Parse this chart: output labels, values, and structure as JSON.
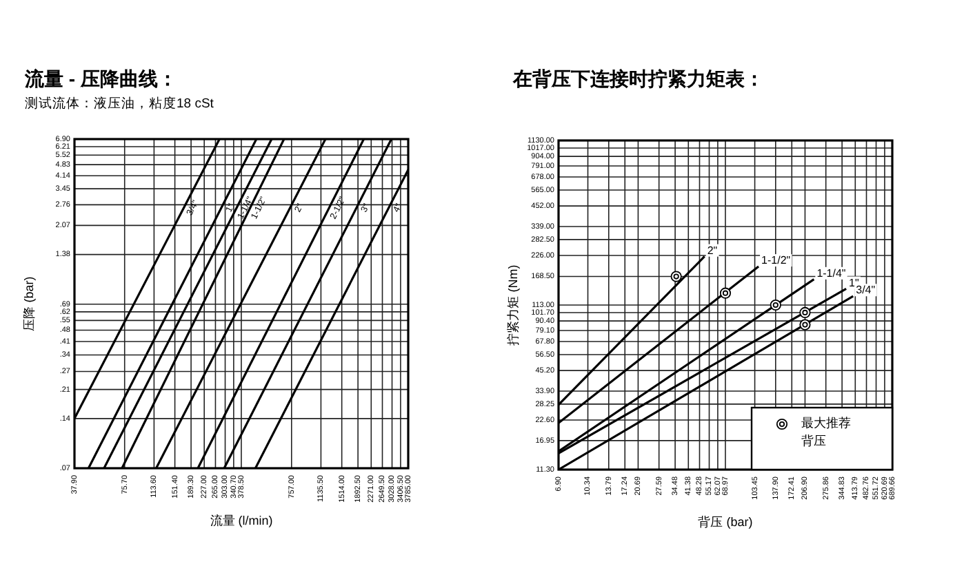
{
  "chart_data": [
    {
      "type": "line",
      "title": "流量 - 压降曲线：",
      "subtitle": "测试流体：液压油，粘度18 cSt",
      "xlabel": "流量 (l/min)",
      "ylabel": "压降 (bar)",
      "log": "xy",
      "xlim": [
        37.9,
        3785
      ],
      "ylim": [
        0.07,
        6.9
      ],
      "grid": true,
      "legend": false,
      "xticks": [
        {
          "value": 37.9,
          "label": "37.90"
        },
        {
          "value": 75.7,
          "label": "75.70"
        },
        {
          "value": 113.6,
          "label": "113.60"
        },
        {
          "value": 151.4,
          "label": "151.40"
        },
        {
          "value": 189.3,
          "label": "189.30"
        },
        {
          "value": 227,
          "label": "227.00"
        },
        {
          "value": 265,
          "label": "265.00"
        },
        {
          "value": 303,
          "label": "303.00"
        },
        {
          "value": 340.7,
          "label": "340.70"
        },
        {
          "value": 378.5,
          "label": "378.50"
        },
        {
          "value": 757,
          "label": "757.00"
        },
        {
          "value": 1135.5,
          "label": "1135.50"
        },
        {
          "value": 1514,
          "label": "1514.00"
        },
        {
          "value": 1892.5,
          "label": "1892.50"
        },
        {
          "value": 2271,
          "label": "2271.00"
        },
        {
          "value": 2649.5,
          "label": "2649.50"
        },
        {
          "value": 3028,
          "label": "3028.00"
        },
        {
          "value": 3406.5,
          "label": "3406.50"
        },
        {
          "value": 3785,
          "label": "3785.00"
        }
      ],
      "yticks": [
        {
          "value": 6.9,
          "label": "6.90"
        },
        {
          "value": 6.21,
          "label": "6.21"
        },
        {
          "value": 5.52,
          "label": "5.52"
        },
        {
          "value": 4.83,
          "label": "4.83"
        },
        {
          "value": 4.14,
          "label": "4.14"
        },
        {
          "value": 3.45,
          "label": "3.45"
        },
        {
          "value": 2.76,
          "label": "2.76"
        },
        {
          "value": 2.07,
          "label": "2.07"
        },
        {
          "value": 1.38,
          "label": "1.38"
        },
        {
          "value": 0.69,
          "label": ".69"
        },
        {
          "value": 0.62,
          "label": ".62"
        },
        {
          "value": 0.55,
          "label": ".55"
        },
        {
          "value": 0.48,
          "label": ".48"
        },
        {
          "value": 0.41,
          "label": ".41"
        },
        {
          "value": 0.34,
          "label": ".34"
        },
        {
          "value": 0.27,
          "label": ".27"
        },
        {
          "value": 0.21,
          "label": ".21"
        },
        {
          "value": 0.14,
          "label": ".14"
        },
        {
          "value": 0.07,
          "label": ".07"
        }
      ],
      "series": [
        {
          "name": "3/4\"",
          "color": "#000000",
          "x": [
            37.9,
            280
          ],
          "values": [
            0.14,
            6.9
          ]
        },
        {
          "name": "1\"",
          "color": "#000000",
          "x": [
            46,
            466
          ],
          "values": [
            0.07,
            6.9
          ]
        },
        {
          "name": "1-1/4\"",
          "color": "#000000",
          "x": [
            57,
            575
          ],
          "values": [
            0.07,
            6.9
          ]
        },
        {
          "name": "1-1/2\"",
          "color": "#000000",
          "x": [
            73,
            682
          ],
          "values": [
            0.07,
            6.9
          ]
        },
        {
          "name": "2\"",
          "color": "#000000",
          "x": [
            117,
            1208
          ],
          "values": [
            0.07,
            6.9
          ]
        },
        {
          "name": "2-1/2\"",
          "color": "#000000",
          "x": [
            208,
            2050
          ],
          "values": [
            0.07,
            6.9
          ]
        },
        {
          "name": "3\"",
          "color": "#000000",
          "x": [
            299,
            3000
          ],
          "values": [
            0.07,
            6.9
          ]
        },
        {
          "name": "4\"",
          "color": "#000000",
          "x": [
            460,
            3785
          ],
          "values": [
            0.07,
            4.5
          ]
        }
      ]
    },
    {
      "type": "line",
      "title": "在背压下连接时拧紧力矩表：",
      "xlabel": "背压 (bar)",
      "ylabel": "拧紧力矩 (Nm)",
      "log": "xy",
      "xlim": [
        6.9,
        689.66
      ],
      "ylim": [
        11.3,
        1130
      ],
      "grid": true,
      "legend": "bottom right",
      "xticks": [
        {
          "value": 6.9,
          "label": "6.90"
        },
        {
          "value": 10.34,
          "label": "10.34"
        },
        {
          "value": 13.79,
          "label": "13.79"
        },
        {
          "value": 17.24,
          "label": "17.24"
        },
        {
          "value": 20.69,
          "label": "20.69"
        },
        {
          "value": 27.59,
          "label": "27.59"
        },
        {
          "value": 34.48,
          "label": "34.48"
        },
        {
          "value": 41.38,
          "label": "41.38"
        },
        {
          "value": 48.28,
          "label": "48.28"
        },
        {
          "value": 55.17,
          "label": "55.17"
        },
        {
          "value": 62.07,
          "label": "62.07"
        },
        {
          "value": 68.97,
          "label": "68.97"
        },
        {
          "value": 103.45,
          "label": "103.45"
        },
        {
          "value": 137.9,
          "label": "137.90"
        },
        {
          "value": 172.41,
          "label": "172.41"
        },
        {
          "value": 206.9,
          "label": "206.90"
        },
        {
          "value": 275.86,
          "label": "275.86"
        },
        {
          "value": 344.83,
          "label": "344.83"
        },
        {
          "value": 413.79,
          "label": "413.79"
        },
        {
          "value": 482.76,
          "label": "482.76"
        },
        {
          "value": 551.72,
          "label": "551.72"
        },
        {
          "value": 620.69,
          "label": "620.69"
        },
        {
          "value": 689.66,
          "label": "689.66"
        }
      ],
      "yticks": [
        {
          "value": 1130,
          "label": "1130.00"
        },
        {
          "value": 1017,
          "label": "1017.00"
        },
        {
          "value": 904,
          "label": "904.00"
        },
        {
          "value": 791,
          "label": "791.00"
        },
        {
          "value": 678,
          "label": "678.00"
        },
        {
          "value": 565,
          "label": "565.00"
        },
        {
          "value": 452,
          "label": "452.00"
        },
        {
          "value": 339,
          "label": "339.00"
        },
        {
          "value": 282.5,
          "label": "282.50"
        },
        {
          "value": 226,
          "label": "226.00"
        },
        {
          "value": 168.5,
          "label": "168.50"
        },
        {
          "value": 113,
          "label": "113.00"
        },
        {
          "value": 101.7,
          "label": "101.70"
        },
        {
          "value": 90.4,
          "label": "90.40"
        },
        {
          "value": 79.1,
          "label": "79.10"
        },
        {
          "value": 67.8,
          "label": "67.80"
        },
        {
          "value": 56.5,
          "label": "56.50"
        },
        {
          "value": 45.2,
          "label": "45.20"
        },
        {
          "value": 33.9,
          "label": "33.90"
        },
        {
          "value": 28.25,
          "label": "28.25"
        },
        {
          "value": 22.6,
          "label": "22.60"
        },
        {
          "value": 16.95,
          "label": "16.95"
        },
        {
          "value": 11.3,
          "label": "11.30"
        }
      ],
      "series": [
        {
          "name": "2\"",
          "color": "#000000",
          "x": [
            6.9,
            51.7
          ],
          "values": [
            28,
            223
          ]
        },
        {
          "name": "1-1/2\"",
          "color": "#000000",
          "x": [
            6.9,
            109
          ],
          "values": [
            21.7,
            194
          ]
        },
        {
          "name": "1-1/4\"",
          "color": "#000000",
          "x": [
            6.9,
            234
          ],
          "values": [
            14.6,
            162
          ]
        },
        {
          "name": "1\"",
          "color": "#000000",
          "x": [
            6.9,
            365
          ],
          "values": [
            14.2,
            142
          ]
        },
        {
          "name": "3/4\"",
          "color": "#000000",
          "x": [
            6.9,
            402
          ],
          "values": [
            11.3,
            128
          ]
        },
        {
          "name": "最大推荐背压",
          "type": "scatter",
          "marker": "circle",
          "color": "#000000",
          "x": [
            35,
            68.97,
            137.9,
            206.9,
            206.9
          ],
          "values": [
            168.5,
            133.5,
            113,
            101.7,
            85.8
          ]
        }
      ]
    }
  ]
}
